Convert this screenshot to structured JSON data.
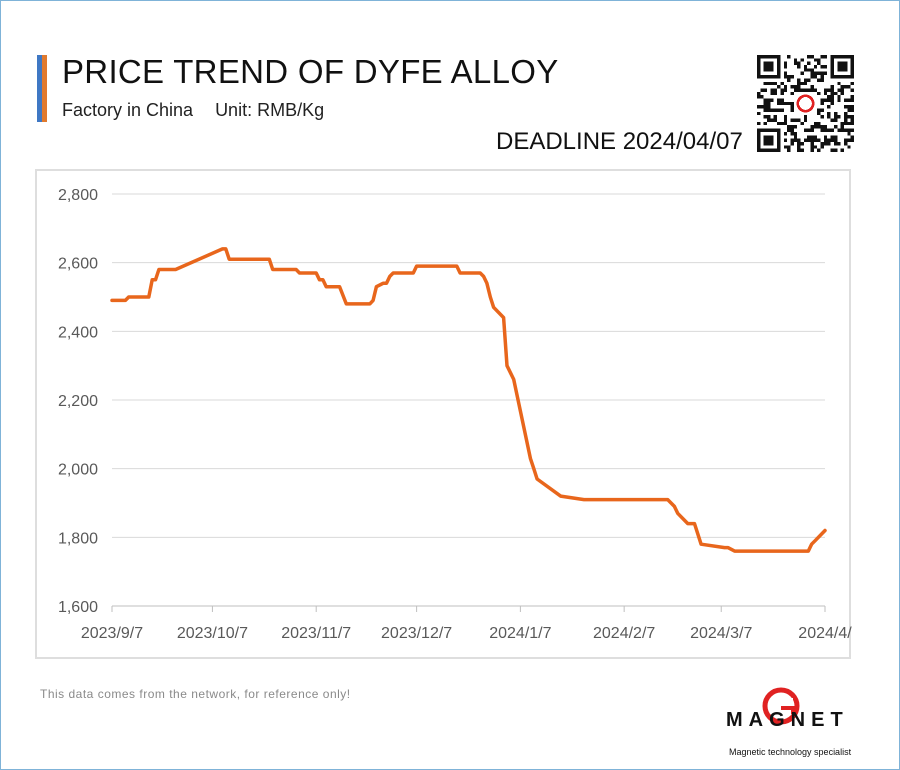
{
  "header": {
    "title": "PRICE TREND OF DYFE ALLOY",
    "subtitle_left": "Factory in China",
    "subtitle_right": "Unit: RMB/Kg",
    "deadline": "DEADLINE 2024/04/07",
    "accent_colors": [
      "#3f78c4",
      "#e07a2e"
    ]
  },
  "chart_data": {
    "type": "line",
    "title": "PRICE TREND OF DYFE ALLOY",
    "xlabel": "",
    "ylabel": "",
    "unit": "RMB/Kg",
    "ylim": [
      1600,
      2800
    ],
    "yticks": [
      1600,
      1800,
      2000,
      2200,
      2400,
      2600,
      2800
    ],
    "ytick_labels": [
      "1,600",
      "1,800",
      "2,000",
      "2,200",
      "2,400",
      "2,600",
      "2,800"
    ],
    "xlim": [
      "2023-09-07",
      "2024-04-07"
    ],
    "xticks": [
      "2023-09-07",
      "2023-10-07",
      "2023-11-07",
      "2023-12-07",
      "2024-01-07",
      "2024-02-07",
      "2024-03-07",
      "2024-04-07"
    ],
    "xtick_labels": [
      "2023/9/7",
      "2023/10/7",
      "2023/11/7",
      "2023/12/7",
      "2024/1/7",
      "2024/2/7",
      "2024/3/7",
      "2024/4/"
    ],
    "grid": "horizontal",
    "line_color": "#e8661c",
    "series": [
      {
        "x": [
          "2023-09-07",
          "2023-09-11",
          "2023-09-12",
          "2023-09-18",
          "2023-09-19",
          "2023-09-20",
          "2023-09-21",
          "2023-09-26",
          "2023-10-10",
          "2023-10-11",
          "2023-10-12",
          "2023-10-24",
          "2023-10-25",
          "2023-11-01",
          "2023-11-02",
          "2023-11-07",
          "2023-11-08",
          "2023-11-09",
          "2023-11-10",
          "2023-11-14",
          "2023-11-16",
          "2023-11-23",
          "2023-11-24",
          "2023-11-25",
          "2023-11-27",
          "2023-11-28",
          "2023-11-29",
          "2023-11-30",
          "2023-12-06",
          "2023-12-07",
          "2023-12-08",
          "2023-12-19",
          "2023-12-20",
          "2023-12-26",
          "2023-12-27",
          "2023-12-28",
          "2023-12-29",
          "2023-12-30",
          "2024-01-02",
          "2024-01-03",
          "2024-01-05",
          "2024-01-10",
          "2024-01-11",
          "2024-01-12",
          "2024-01-19",
          "2024-01-26",
          "2024-02-20",
          "2024-02-22",
          "2024-02-23",
          "2024-02-26",
          "2024-02-27",
          "2024-02-28",
          "2024-03-01",
          "2024-03-08",
          "2024-03-09",
          "2024-03-11",
          "2024-04-02",
          "2024-04-03",
          "2024-04-04",
          "2024-04-07"
        ],
        "values": [
          2490,
          2490,
          2500,
          2500,
          2550,
          2550,
          2580,
          2580,
          2640,
          2640,
          2610,
          2610,
          2580,
          2580,
          2570,
          2570,
          2550,
          2550,
          2530,
          2530,
          2480,
          2480,
          2490,
          2530,
          2540,
          2540,
          2560,
          2570,
          2570,
          2590,
          2590,
          2590,
          2570,
          2570,
          2560,
          2540,
          2500,
          2470,
          2440,
          2300,
          2260,
          2030,
          2000,
          1970,
          1920,
          1910,
          1910,
          1890,
          1870,
          1840,
          1840,
          1840,
          1780,
          1770,
          1770,
          1760,
          1760,
          1780,
          1790,
          1820
        ]
      }
    ]
  },
  "footer": {
    "note": "This data comes from the network, for reference only!",
    "logo_word": "MAGNET",
    "logo_tagline": "Magnetic technology specialist"
  },
  "icons": {
    "qr": "qr-code-icon",
    "logo": "magnet-logo-icon"
  }
}
